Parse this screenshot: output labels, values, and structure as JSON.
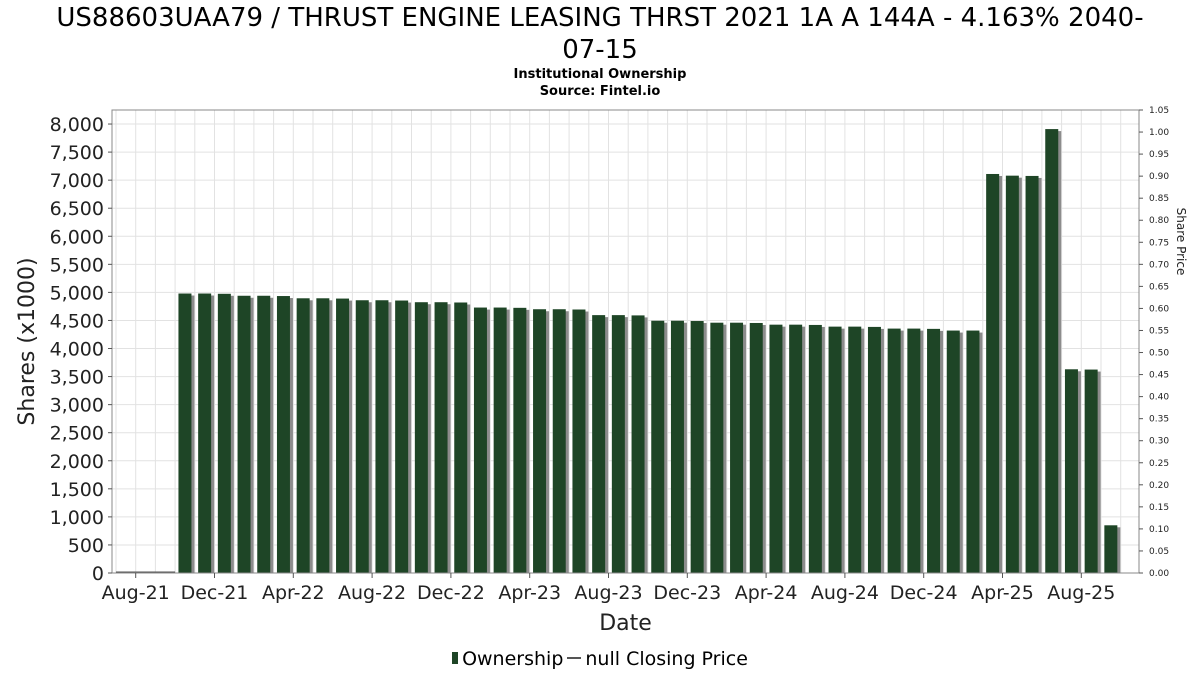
{
  "title": "US88603UAA79 / THRUST ENGINE LEASING THRST 2021 1A A 144A - 4.163% 2040-07-15",
  "title_lines": [
    "US88603UAA79 / THRUST ENGINE LEASING THRST 2021 1A A 144A - 4.163% 2040-",
    "07-15"
  ],
  "subtitle": "Institutional Ownership",
  "source": "Source: Fintel.io",
  "legend": {
    "ownership_label": "Ownership",
    "price_label": "null Closing Price"
  },
  "colors": {
    "bar": "#1e4526",
    "bar_shadow": "#8c8c8c",
    "grid": "#e2e2e2",
    "axis": "#888888"
  },
  "chart_data": {
    "type": "bar",
    "xlabel": "Date",
    "ylabel": "Shares (x1000)",
    "y2label": "Share Price",
    "ylim": [
      0,
      8250
    ],
    "y2lim": [
      0,
      1.05
    ],
    "yticks": [
      0,
      500,
      1000,
      1500,
      2000,
      2500,
      3000,
      3500,
      4000,
      4500,
      5000,
      5500,
      6000,
      6500,
      7000,
      7500,
      8000
    ],
    "ytick_labels": [
      "0",
      "500",
      "1,000",
      "1,500",
      "2,000",
      "2,500",
      "3,000",
      "3,500",
      "4,000",
      "4,500",
      "5,000",
      "5,500",
      "6,000",
      "6,500",
      "7,000",
      "7,500",
      "8,000"
    ],
    "y2ticks": [
      "0.00",
      "0.05",
      "0.10",
      "0.15",
      "0.20",
      "0.25",
      "0.30",
      "0.35",
      "0.40",
      "0.45",
      "0.50",
      "0.55",
      "0.60",
      "0.65",
      "0.70",
      "0.75",
      "0.80",
      "0.85",
      "0.90",
      "0.95",
      "1.00",
      "1.05"
    ],
    "x_ticks": [
      "Aug-21",
      "Dec-21",
      "Apr-22",
      "Aug-22",
      "Dec-22",
      "Apr-23",
      "Aug-23",
      "Dec-23",
      "Apr-24",
      "Aug-24",
      "Dec-24",
      "Apr-25",
      "Aug-25"
    ],
    "x_start": "2021-07",
    "grid": true,
    "series": [
      {
        "name": "Ownership",
        "unit": "month",
        "points": [
          [
            "2021-10",
            4980
          ],
          [
            "2021-11",
            4980
          ],
          [
            "2021-12",
            4975
          ],
          [
            "2022-01",
            4940
          ],
          [
            "2022-02",
            4940
          ],
          [
            "2022-03",
            4935
          ],
          [
            "2022-04",
            4895
          ],
          [
            "2022-05",
            4895
          ],
          [
            "2022-06",
            4890
          ],
          [
            "2022-07",
            4860
          ],
          [
            "2022-08",
            4860
          ],
          [
            "2022-09",
            4855
          ],
          [
            "2022-10",
            4825
          ],
          [
            "2022-11",
            4825
          ],
          [
            "2022-12",
            4820
          ],
          [
            "2023-01",
            4730
          ],
          [
            "2023-02",
            4730
          ],
          [
            "2023-03",
            4725
          ],
          [
            "2023-04",
            4700
          ],
          [
            "2023-05",
            4700
          ],
          [
            "2023-06",
            4695
          ],
          [
            "2023-07",
            4595
          ],
          [
            "2023-08",
            4595
          ],
          [
            "2023-09",
            4590
          ],
          [
            "2023-10",
            4495
          ],
          [
            "2023-11",
            4495
          ],
          [
            "2023-12",
            4490
          ],
          [
            "2024-01",
            4460
          ],
          [
            "2024-02",
            4460
          ],
          [
            "2024-03",
            4455
          ],
          [
            "2024-04",
            4425
          ],
          [
            "2024-05",
            4425
          ],
          [
            "2024-06",
            4420
          ],
          [
            "2024-07",
            4390
          ],
          [
            "2024-08",
            4390
          ],
          [
            "2024-09",
            4385
          ],
          [
            "2024-10",
            4355
          ],
          [
            "2024-11",
            4355
          ],
          [
            "2024-12",
            4350
          ],
          [
            "2025-01",
            4320
          ],
          [
            "2025-02",
            4320
          ],
          [
            "2025-03",
            7110
          ],
          [
            "2025-04",
            7080
          ],
          [
            "2025-05",
            7075
          ],
          [
            "2025-06",
            7910
          ],
          [
            "2025-07",
            3630
          ],
          [
            "2025-08",
            3625
          ],
          [
            "2025-09",
            850
          ]
        ]
      }
    ]
  }
}
